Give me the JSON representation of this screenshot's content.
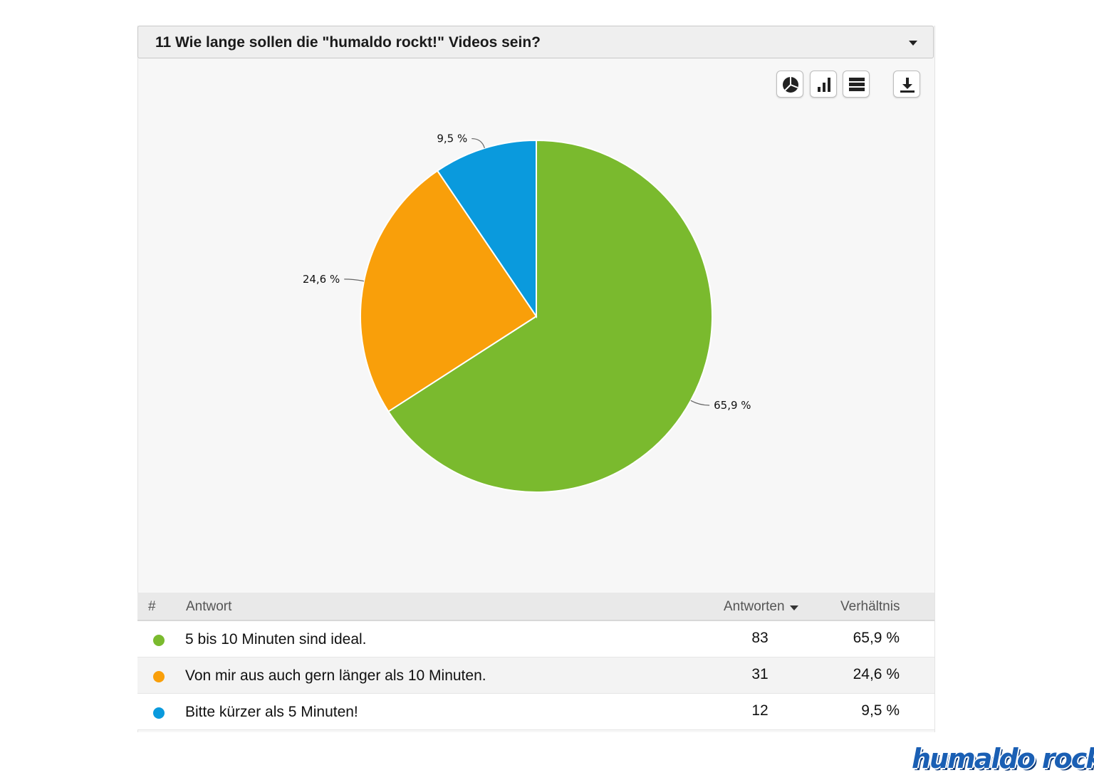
{
  "header": {
    "title": "11 Wie lange sollen die \"humaldo rockt!\" Videos sein?"
  },
  "toolbar": {
    "buttons": [
      {
        "icon": "pie-chart-icon"
      },
      {
        "icon": "bar-chart-icon"
      },
      {
        "icon": "table-view-icon"
      },
      {
        "icon": "download-icon"
      }
    ]
  },
  "chart_data": {
    "type": "pie",
    "categories": [
      "5 bis 10 Minuten sind ideal.",
      "Von mir aus auch gern länger als 10 Minuten.",
      "Bitte kürzer als 5 Minuten!"
    ],
    "values": [
      65.9,
      24.6,
      9.5
    ],
    "data_labels": [
      "65,9 %",
      "24,6 %",
      "9,5 %"
    ],
    "colors": [
      "#7aba2e",
      "#f99f0a",
      "#0a9add"
    ]
  },
  "table": {
    "headers": {
      "index": "#",
      "answer": "Antwort",
      "count": "Antworten",
      "ratio": "Verhältnis"
    },
    "rows": [
      {
        "answer": "5 bis 10 Minuten sind ideal.",
        "count": "83",
        "ratio": "65,9 %",
        "color": "#7aba2e"
      },
      {
        "answer": "Von mir aus auch gern länger als 10 Minuten.",
        "count": "31",
        "ratio": "24,6 %",
        "color": "#f99f0a"
      },
      {
        "answer": "Bitte kürzer als 5 Minuten!",
        "count": "12",
        "ratio": "9,5 %",
        "color": "#0a9add"
      }
    ]
  },
  "logo": {
    "text": "humaldo rockt!"
  }
}
